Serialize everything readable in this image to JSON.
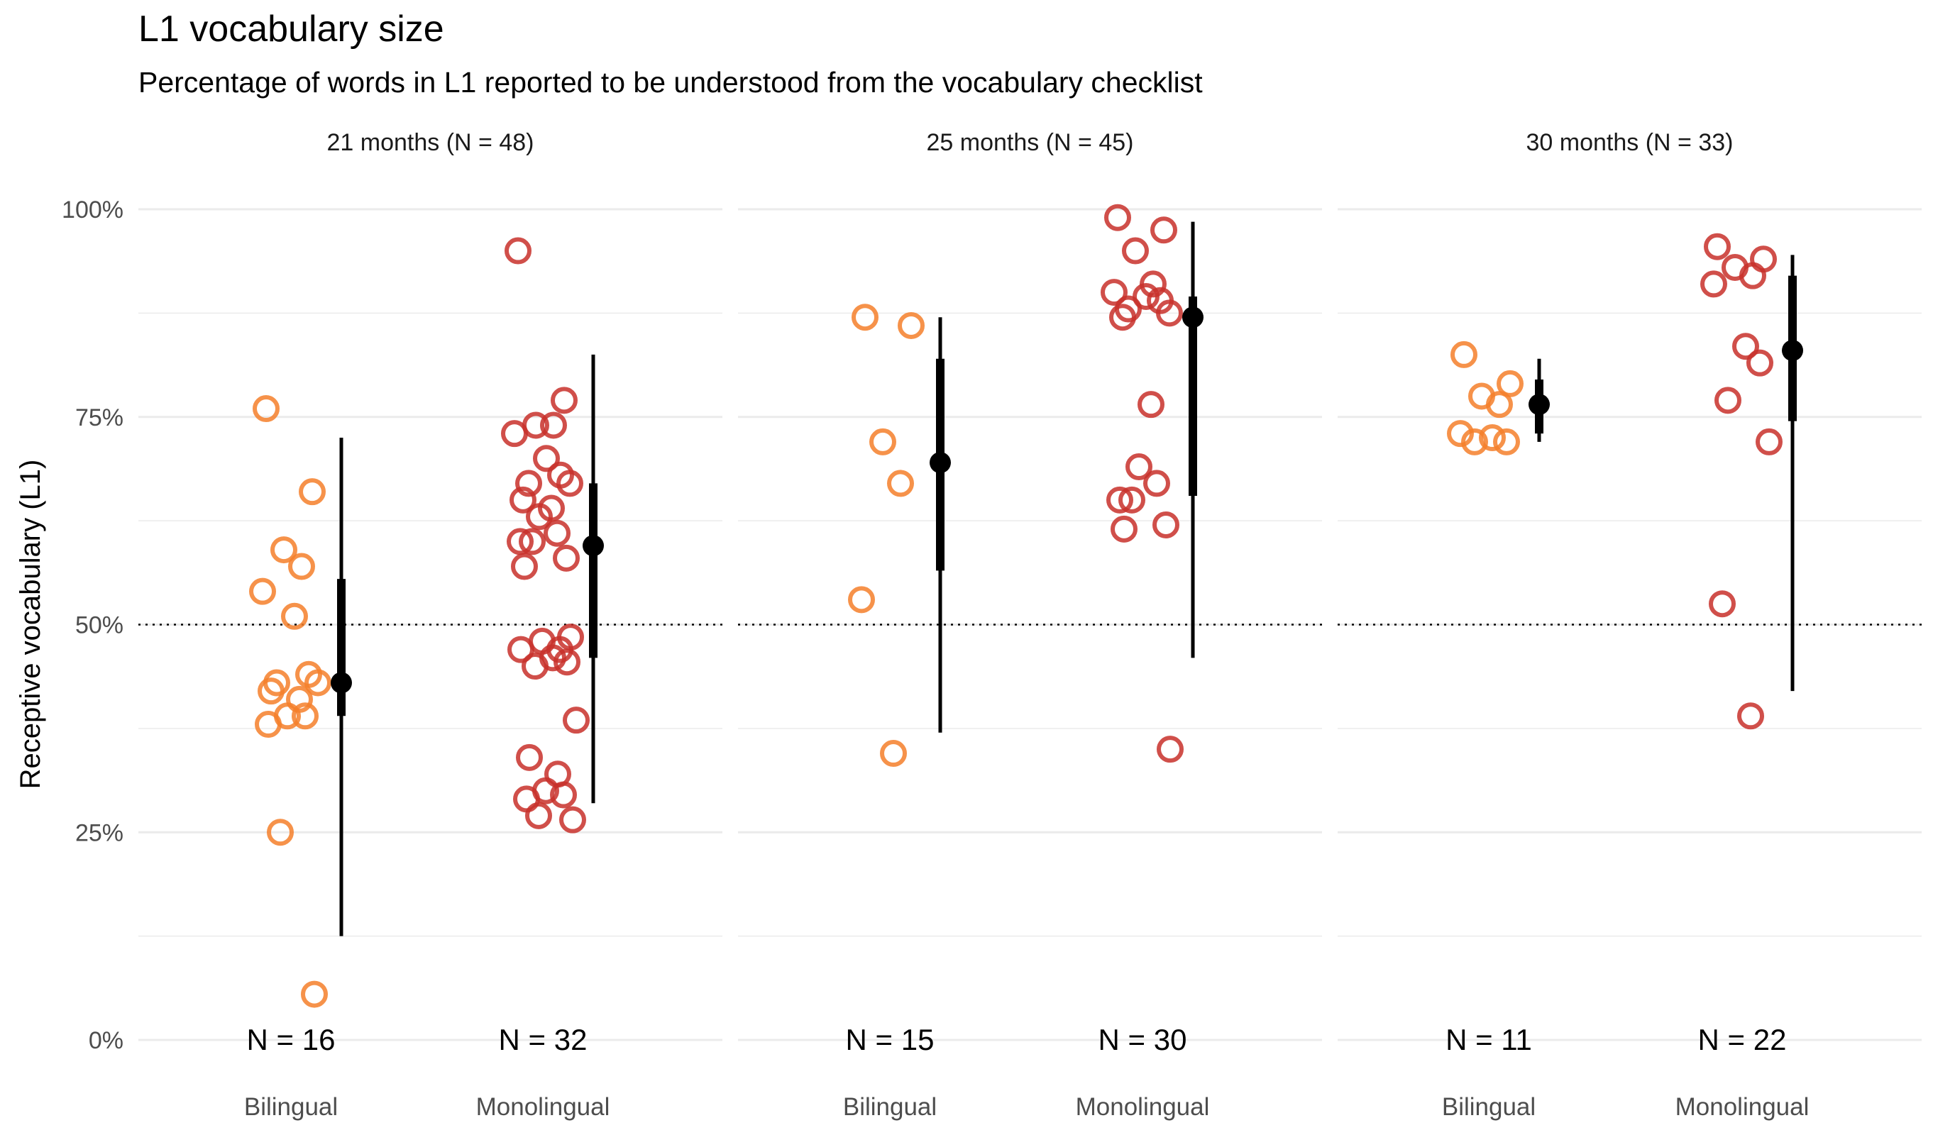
{
  "chart_data": {
    "type": "scatter",
    "title": "L1 vocabulary size",
    "subtitle": "Percentage of words in L1 reported to be understood from the vocabulary checklist",
    "ylabel": "Receptive vocabulary (L1)",
    "xlabel": "",
    "ylim": [
      0,
      100
    ],
    "y_ticks": [
      "0%",
      "25%",
      "50%",
      "75%",
      "100%"
    ],
    "reference_line": 50,
    "grid": true,
    "colors": {
      "Bilingual": "#f57f2a",
      "Monolingual": "#c8302a",
      "summary": "#000000"
    },
    "categories": [
      "Bilingual",
      "Monolingual"
    ],
    "panels": [
      {
        "title": "21 months (N = 48)",
        "groups": [
          {
            "name": "Bilingual",
            "n_label": "N = 16",
            "points": [
              76,
              66,
              59,
              57,
              54,
              51,
              44,
              43,
              43,
              42,
              41,
              39,
              39,
              38,
              25,
              5.5
            ],
            "summary": {
              "center": 43,
              "inner": [
                39,
                55.5
              ],
              "outer": [
                12.5,
                72.5
              ]
            }
          },
          {
            "name": "Monolingual",
            "n_label": "N = 32",
            "points": [
              95,
              77,
              74,
              74,
              73,
              70,
              68,
              67,
              67,
              65,
              64,
              63,
              61,
              60,
              60,
              58,
              57,
              48.5,
              48,
              47,
              47,
              46,
              45.5,
              45,
              38.5,
              34,
              32,
              30,
              29.5,
              29,
              27,
              26.5
            ],
            "summary": {
              "center": 59.5,
              "inner": [
                46,
                67
              ],
              "outer": [
                28.5,
                82.5
              ]
            }
          }
        ]
      },
      {
        "title": "25 months (N = 45)",
        "groups": [
          {
            "name": "Bilingual",
            "n_label": "N = 15",
            "points": [
              87,
              86,
              72,
              67,
              53,
              34.5
            ],
            "summary": {
              "center": 69.5,
              "inner": [
                56.5,
                82
              ],
              "outer": [
                37,
                87
              ]
            }
          },
          {
            "name": "Monolingual",
            "n_label": "N = 30",
            "points": [
              99,
              97.5,
              95,
              91,
              90,
              89.5,
              89,
              88,
              87.5,
              87,
              76.5,
              69,
              67,
              65,
              65,
              62,
              61.5,
              35
            ],
            "summary": {
              "center": 87,
              "inner": [
                65.5,
                89.5
              ],
              "outer": [
                46,
                98.5
              ]
            }
          }
        ]
      },
      {
        "title": "30 months (N = 33)",
        "groups": [
          {
            "name": "Bilingual",
            "n_label": "N = 11",
            "points": [
              82.5,
              79,
              77.5,
              76.5,
              73,
              72.5,
              72,
              72
            ],
            "summary": {
              "center": 76.5,
              "inner": [
                73,
                79.5
              ],
              "outer": [
                72,
                82
              ]
            }
          },
          {
            "name": "Monolingual",
            "n_label": "N = 22",
            "points": [
              95.5,
              94,
              93,
              92,
              91,
              83.5,
              81.5,
              77,
              72,
              52.5,
              39
            ],
            "summary": {
              "center": 83,
              "inner": [
                74.5,
                92
              ],
              "outer": [
                42,
                94.5
              ]
            }
          }
        ]
      }
    ]
  }
}
